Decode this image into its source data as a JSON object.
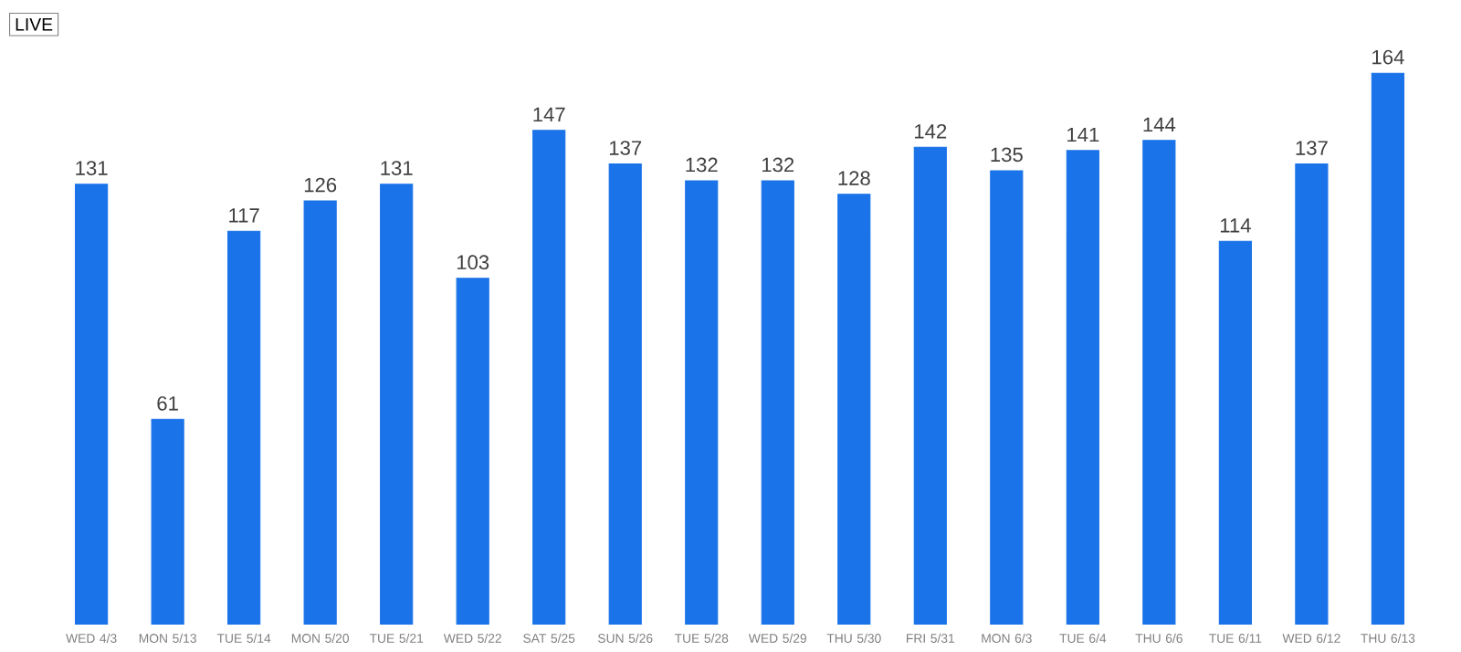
{
  "chart_data": {
    "type": "bar",
    "categories": [
      "WED 4/3",
      "MON 5/13",
      "TUE 5/14",
      "MON 5/20",
      "TUE 5/21",
      "WED 5/22",
      "SAT 5/25",
      "SUN 5/26",
      "TUE 5/28",
      "WED 5/29",
      "THU 5/30",
      "FRI 5/31",
      "MON 6/3",
      "TUE 6/4",
      "THU 6/6",
      "TUE 6/11",
      "WED 6/12",
      "THU 6/13"
    ],
    "values": [
      131,
      61,
      117,
      126,
      131,
      103,
      147,
      137,
      132,
      132,
      128,
      142,
      135,
      141,
      144,
      114,
      137,
      164
    ],
    "color": "#1a73e8",
    "data_labels": true,
    "tick_labels": "x",
    "annotations": [
      "LIVE"
    ]
  }
}
